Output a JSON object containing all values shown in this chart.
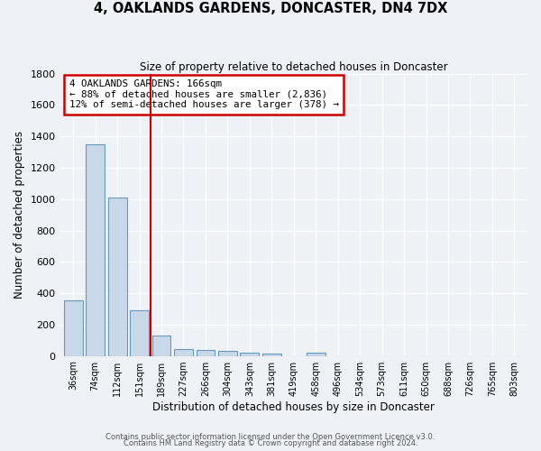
{
  "title": "4, OAKLANDS GARDENS, DONCASTER, DN4 7DX",
  "subtitle": "Size of property relative to detached houses in Doncaster",
  "xlabel": "Distribution of detached houses by size in Doncaster",
  "ylabel": "Number of detached properties",
  "bar_labels": [
    "36sqm",
    "74sqm",
    "112sqm",
    "151sqm",
    "189sqm",
    "227sqm",
    "266sqm",
    "304sqm",
    "343sqm",
    "381sqm",
    "419sqm",
    "458sqm",
    "496sqm",
    "534sqm",
    "573sqm",
    "611sqm",
    "650sqm",
    "688sqm",
    "726sqm",
    "765sqm",
    "803sqm"
  ],
  "bar_values": [
    355,
    1350,
    1010,
    290,
    130,
    45,
    35,
    30,
    20,
    15,
    0,
    20,
    0,
    0,
    0,
    0,
    0,
    0,
    0,
    0,
    0
  ],
  "bar_color": "#c8d8e8",
  "bar_edge_color": "#6699bb",
  "vline_x": 3.5,
  "vline_color": "#cc0000",
  "annotation_title": "4 OAKLANDS GARDENS: 166sqm",
  "annotation_line1": "← 88% of detached houses are smaller (2,836)",
  "annotation_line2": "12% of semi-detached houses are larger (378) →",
  "annotation_box_color": "#cc0000",
  "ylim": [
    0,
    1800
  ],
  "yticks": [
    0,
    200,
    400,
    600,
    800,
    1000,
    1200,
    1400,
    1600,
    1800
  ],
  "footer1": "Contains HM Land Registry data © Crown copyright and database right 2024.",
  "footer2": "Contains public sector information licensed under the Open Government Licence v3.0.",
  "background_color": "#eef2f7",
  "plot_background": "#eef2f7"
}
